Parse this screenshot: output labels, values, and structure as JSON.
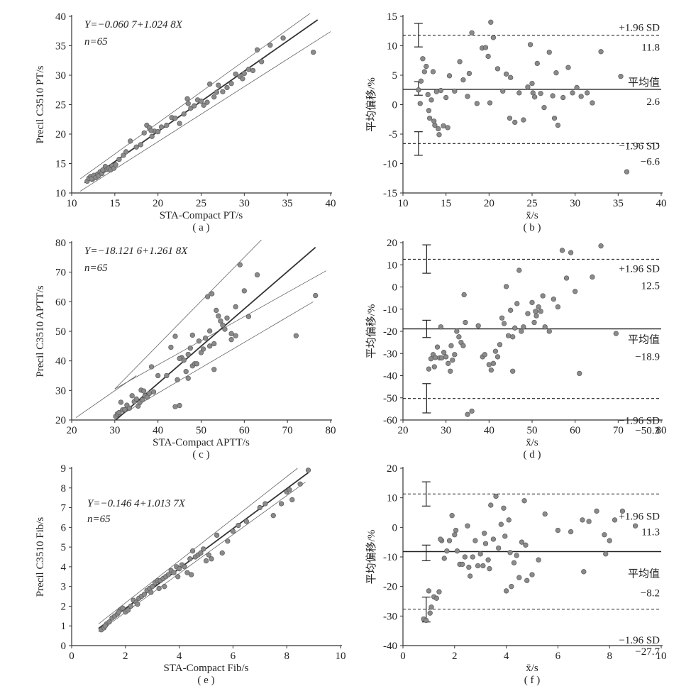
{
  "chart_data": [
    {
      "type": "scatter",
      "panel_label": "( a )",
      "xlabel": "STA-Compact PT/s",
      "ylabel": "Precil C3510 PT/s",
      "xlim": [
        10,
        40
      ],
      "ylim": [
        10,
        40
      ],
      "xticks": [
        10,
        15,
        20,
        25,
        30,
        35,
        40
      ],
      "yticks": [
        10,
        15,
        20,
        25,
        30,
        35,
        40
      ],
      "annotation_lines": [
        "Y=−0.060 7+1.024 8X",
        "n=65"
      ],
      "regression": {
        "intercept": -0.0607,
        "slope": 1.0248,
        "x_range": [
          11.5,
          38.5
        ]
      },
      "bounds": [
        {
          "points": [
            [
              11,
              12.4
            ],
            [
              40,
              43
            ]
          ]
        },
        {
          "points": [
            [
              11,
              10.3
            ],
            [
              40,
              37.4
            ]
          ]
        }
      ],
      "x": [
        11.8,
        12.0,
        12.2,
        12.4,
        12.6,
        12.8,
        13.0,
        13.1,
        13.3,
        13.5,
        13.7,
        13.9,
        14.1,
        14.3,
        14.5,
        14.7,
        14.9,
        15.1,
        15.5,
        16.0,
        16.3,
        16.8,
        17.5,
        18.0,
        18.4,
        18.7,
        19.0,
        19.3,
        19.6,
        20.0,
        20.4,
        21.0,
        21.6,
        22.0,
        22.5,
        23.0,
        23.4,
        23.8,
        24.2,
        24.6,
        25.0,
        25.3,
        25.7,
        26.0,
        26.5,
        27.0,
        27.5,
        28.0,
        28.5,
        29.0,
        29.5,
        30.0,
        30.5,
        31.0,
        31.5,
        32.0,
        33.0,
        34.5,
        38.0,
        19.2,
        23.5,
        12.3,
        13.6,
        26.8,
        29.8
      ],
      "y": [
        12.0,
        12.5,
        12.8,
        12.3,
        13.0,
        12.6,
        13.2,
        12.9,
        13.6,
        13.3,
        13.8,
        14.5,
        14.0,
        14.2,
        13.9,
        14.6,
        14.2,
        14.8,
        15.7,
        16.4,
        17.0,
        18.8,
        17.8,
        18.2,
        20.2,
        21.5,
        21.1,
        19.6,
        20.5,
        20.4,
        21.2,
        21.5,
        22.8,
        22.7,
        21.8,
        23.4,
        26.0,
        24.4,
        24.8,
        25.8,
        25.6,
        24.9,
        25.4,
        28.5,
        26.3,
        28.3,
        27.2,
        27.9,
        28.6,
        30.2,
        29.8,
        30.3,
        31.0,
        30.8,
        34.3,
        32.3,
        35.1,
        36.3,
        33.9,
        20.6,
        25.2,
        12.4,
        13.9,
        27.1,
        29.4
      ]
    },
    {
      "type": "scatter",
      "panel_label": "( b )",
      "xlabel": "x̄/s",
      "ylabel": "平均偏移/%",
      "xlim": [
        10,
        40
      ],
      "ylim": [
        -15,
        15
      ],
      "xticks": [
        10,
        15,
        20,
        25,
        30,
        35,
        40
      ],
      "yticks": [
        -15,
        -10,
        -5,
        0,
        5,
        10,
        15
      ],
      "reference_lines": [
        {
          "y": 11.8,
          "style": "dashed",
          "name": "+1.96 SD",
          "value_label": "11.8"
        },
        {
          "y": 2.6,
          "style": "solid",
          "name": "平均值",
          "value_label": "2.6"
        },
        {
          "y": -6.6,
          "style": "dashed",
          "name": "−1.96 SD",
          "value_label": "−6.6"
        }
      ],
      "ci_bars": [
        {
          "x": 11.8,
          "low": 9.8,
          "high": 13.8
        },
        {
          "x": 11.8,
          "low": 1.6,
          "high": 3.9
        },
        {
          "x": 11.8,
          "low": -8.6,
          "high": -4.6
        }
      ],
      "x": [
        11.8,
        12.1,
        12.3,
        12.5,
        12.7,
        12.9,
        13.1,
        13.3,
        13.5,
        13.7,
        13.9,
        14.1,
        14.4,
        14.7,
        15.0,
        15.4,
        16.0,
        16.6,
        17.0,
        17.5,
        18.0,
        18.6,
        19.2,
        19.6,
        19.9,
        20.2,
        20.5,
        21.0,
        21.6,
        22.0,
        22.5,
        23.0,
        23.5,
        24.0,
        24.5,
        24.8,
        25.0,
        25.3,
        25.6,
        26.0,
        26.4,
        27.0,
        27.4,
        27.6,
        28.0,
        28.6,
        29.2,
        29.7,
        30.2,
        30.7,
        31.4,
        32.0,
        33.0,
        35.3,
        36.0,
        12.0,
        13.0,
        13.6,
        14.2,
        15.2,
        17.7,
        20.1,
        22.4,
        25.1,
        27.8
      ],
      "y": [
        2.5,
        4.0,
        7.8,
        5.6,
        6.5,
        1.7,
        -2.3,
        0.8,
        5.6,
        -3.5,
        2.2,
        -4.1,
        2.4,
        -3.6,
        1.2,
        4.9,
        2.3,
        7.3,
        4.2,
        1.4,
        12.2,
        0.2,
        9.6,
        9.7,
        8.2,
        14.0,
        11.4,
        6.1,
        2.3,
        5.2,
        4.6,
        -3.0,
        2.0,
        -2.6,
        3.0,
        10.2,
        3.6,
        1.3,
        7.0,
        1.9,
        -0.5,
        8.9,
        1.5,
        -2.3,
        -3.5,
        1.2,
        6.3,
        2.0,
        2.9,
        1.4,
        2.0,
        0.3,
        9.0,
        4.8,
        -11.4,
        0.2,
        -1.0,
        -2.8,
        -5.1,
        -3.9,
        5.3,
        0.3,
        -2.3,
        2.0,
        5.4
      ]
    },
    {
      "type": "scatter",
      "panel_label": "( c )",
      "xlabel": "STA-Compact APTT/s",
      "ylabel": "Precil C3510 APTT/s",
      "xlim": [
        20,
        80
      ],
      "ylim": [
        20,
        80
      ],
      "xticks": [
        20,
        30,
        40,
        50,
        60,
        70,
        80
      ],
      "yticks": [
        20,
        30,
        40,
        50,
        60,
        70,
        80
      ],
      "annotation_lines": [
        "Y=−18.121 6+1.261 8X",
        "n=65"
      ],
      "regression": {
        "intercept": -18.1216,
        "slope": 1.2618,
        "x_range": [
          30.2,
          76.5
        ]
      },
      "bounds": [
        {
          "points": [
            [
              30,
              30.5
            ],
            [
              79,
              70.5
            ]
          ]
        },
        {
          "points": [
            [
              30,
              20.5
            ],
            [
              76,
              60
            ]
          ]
        },
        {
          "points": [
            [
              30,
              30.5
            ],
            [
              64,
              81
            ]
          ]
        },
        {
          "points": [
            [
              21,
              20.8
            ],
            [
              35,
              35
            ]
          ]
        }
      ],
      "x": [
        30.2,
        30.6,
        31.0,
        31.4,
        31.8,
        32.3,
        32.8,
        33.4,
        34.0,
        34.5,
        35.0,
        35.4,
        35.8,
        36.1,
        36.4,
        36.7,
        37.0,
        37.5,
        38.0,
        38.5,
        39.0,
        40.0,
        42.0,
        43.0,
        44.0,
        44.5,
        45.0,
        45.5,
        46.0,
        46.5,
        47.0,
        47.5,
        48.0,
        48.5,
        49.0,
        49.5,
        50.0,
        50.5,
        51.0,
        51.5,
        52.0,
        52.5,
        53.0,
        53.5,
        54.0,
        54.5,
        55.0,
        55.5,
        56.0,
        57.0,
        58.0,
        59.0,
        60.0,
        61.0,
        63.0,
        72.0,
        76.5,
        44.0,
        45.0,
        47.0,
        48.0,
        53.0,
        57.0,
        58.0,
        52.0
      ],
      "y": [
        21.2,
        22.1,
        22.5,
        26.0,
        23.4,
        23.5,
        25.0,
        24.0,
        28.2,
        26.2,
        27.1,
        24.7,
        25.9,
        30.1,
        26.8,
        29.8,
        28.2,
        27.7,
        29.0,
        38.0,
        29.5,
        35.0,
        35.0,
        44.6,
        48.3,
        33.6,
        24.9,
        41.1,
        40.2,
        36.4,
        34.1,
        44.3,
        38.3,
        39.0,
        39.0,
        46.7,
        42.8,
        44.0,
        47.7,
        61.7,
        50.1,
        62.7,
        37.1,
        57.1,
        55.2,
        53.5,
        52.1,
        50.7,
        54.5,
        49.2,
        58.3,
        72.5,
        63.7,
        55.0,
        69.1,
        48.5,
        62.1,
        24.5,
        40.8,
        42.2,
        48.7,
        45.8,
        47.2,
        48.5,
        45.0
      ]
    },
    {
      "type": "scatter",
      "panel_label": "( d )",
      "xlabel": "x̄/s",
      "ylabel": "平均偏移/%",
      "xlim": [
        20,
        80
      ],
      "ylim": [
        -60,
        20
      ],
      "xticks": [
        20,
        30,
        40,
        50,
        60,
        70,
        80
      ],
      "yticks": [
        -60,
        -50,
        -40,
        -30,
        -20,
        -10,
        0,
        10,
        20
      ],
      "reference_lines": [
        {
          "y": 12.5,
          "style": "dashed",
          "name": "+1.96 SD",
          "value_label": "12.5"
        },
        {
          "y": -18.9,
          "style": "solid",
          "name": "平均值",
          "value_label": "−18.9"
        },
        {
          "y": -50.3,
          "style": "dashed",
          "name": "−1.96 SD",
          "value_label": "−50.3"
        }
      ],
      "ci_bars": [
        {
          "x": 25.5,
          "low": 6.2,
          "high": 19.0
        },
        {
          "x": 25.5,
          "low": -22.8,
          "high": -15.0
        },
        {
          "x": 25.5,
          "low": -56.8,
          "high": -43.6
        }
      ],
      "x": [
        26.0,
        26.5,
        27.0,
        27.5,
        28.0,
        28.5,
        29.0,
        29.5,
        30.0,
        30.5,
        31.0,
        31.5,
        32.0,
        32.5,
        33.0,
        33.5,
        34.0,
        34.5,
        35.0,
        36.0,
        37.5,
        38.5,
        39.0,
        40.0,
        41.0,
        41.5,
        42.0,
        42.5,
        43.0,
        43.5,
        44.0,
        44.5,
        45.0,
        45.5,
        46.0,
        46.5,
        47.0,
        47.5,
        48.0,
        49.0,
        50.0,
        50.5,
        51.0,
        51.5,
        52.0,
        52.5,
        53.0,
        54.0,
        55.0,
        56.0,
        57.0,
        58.0,
        59.0,
        60.0,
        61.0,
        64.0,
        66.0,
        69.5,
        27.3,
        28.8,
        31.2,
        34.2,
        40.5,
        45.5,
        50.8
      ],
      "y": [
        -37.0,
        -32.4,
        -30.5,
        -31.8,
        -27.1,
        -32.0,
        -32.0,
        -29.5,
        -31.5,
        -34.5,
        -38.0,
        -33.0,
        -30.5,
        -20.0,
        -22.5,
        -25.0,
        -26.5,
        -16.0,
        -57.5,
        -56.0,
        -17.5,
        -31.5,
        -30.5,
        -35.0,
        -34.5,
        -29.0,
        -31.5,
        -26.0,
        -14.0,
        -16.5,
        0.2,
        -22.0,
        -10.5,
        -38.0,
        -18.5,
        -7.5,
        7.5,
        -20.0,
        -18.0,
        -12.0,
        -7.0,
        -16.0,
        -13.0,
        -9.0,
        -11.0,
        -4.0,
        -18.0,
        -20.0,
        -5.5,
        -9.0,
        16.5,
        4.0,
        15.5,
        -2.0,
        -39.0,
        4.5,
        18.5,
        -21.0,
        -36.0,
        -18.0,
        -26.5,
        -3.5,
        -37.5,
        -22.5,
        -11.0
      ]
    },
    {
      "type": "scatter",
      "panel_label": "( e )",
      "xlabel": "STA-Compact Fib/s",
      "ylabel": "Precil C3510 Fib/s",
      "xlim": [
        0,
        10
      ],
      "ylim": [
        0,
        9
      ],
      "xticks": [
        0,
        2,
        4,
        6,
        8,
        10
      ],
      "yticks": [
        0,
        1,
        2,
        3,
        4,
        5,
        6,
        7,
        8,
        9
      ],
      "annotation_lines": [
        "Y=−0.146 4+1.013 7X",
        "n=65"
      ],
      "regression": {
        "intercept": -0.1464,
        "slope": 1.0137,
        "x_range": [
          1.0,
          8.8
        ]
      },
      "bounds": [
        {
          "points": [
            [
              1.0,
              1.1
            ],
            [
              8.4,
              9.0
            ]
          ]
        },
        {
          "points": [
            [
              1.0,
              0.7
            ],
            [
              8.7,
              8.3
            ]
          ]
        }
      ],
      "x": [
        1.1,
        1.2,
        1.3,
        1.4,
        1.5,
        1.6,
        1.7,
        1.8,
        1.9,
        2.0,
        2.1,
        2.2,
        2.3,
        2.4,
        2.5,
        2.6,
        2.7,
        2.8,
        2.9,
        3.0,
        3.1,
        3.2,
        3.3,
        3.4,
        3.5,
        3.6,
        3.7,
        3.8,
        3.9,
        4.0,
        4.1,
        4.2,
        4.3,
        4.4,
        4.5,
        4.6,
        4.7,
        4.8,
        4.9,
        5.0,
        5.2,
        5.4,
        5.6,
        5.8,
        6.0,
        6.2,
        6.5,
        7.0,
        7.2,
        7.5,
        7.8,
        8.0,
        8.1,
        8.2,
        8.5,
        8.8,
        1.25,
        1.75,
        2.45,
        2.95,
        3.45,
        3.95,
        4.45,
        5.1,
        3.25
      ],
      "y": [
        0.8,
        0.9,
        1.1,
        1.2,
        1.4,
        1.5,
        1.6,
        1.8,
        1.9,
        1.7,
        1.8,
        2.0,
        2.3,
        2.2,
        2.4,
        2.5,
        2.6,
        2.8,
        2.9,
        3.0,
        3.2,
        3.3,
        3.3,
        3.4,
        3.5,
        3.6,
        3.8,
        3.7,
        4.0,
        3.9,
        4.1,
        4.0,
        3.7,
        4.4,
        4.8,
        4.5,
        4.6,
        4.7,
        4.9,
        4.3,
        4.4,
        5.6,
        4.7,
        5.3,
        5.8,
        6.1,
        6.3,
        7.0,
        7.2,
        6.6,
        7.2,
        7.8,
        7.9,
        7.4,
        8.2,
        8.9,
        1.0,
        1.7,
        2.1,
        2.7,
        3.0,
        3.5,
        3.6,
        4.6,
        2.9
      ]
    },
    {
      "type": "scatter",
      "panel_label": "( f )",
      "xlabel": "x̄/s",
      "ylabel": "平均偏移/%",
      "xlim": [
        0,
        10
      ],
      "ylim": [
        -40,
        20
      ],
      "xticks": [
        0,
        2,
        4,
        6,
        8,
        10
      ],
      "yticks": [
        -40,
        -30,
        -20,
        -10,
        0,
        10,
        20
      ],
      "reference_lines": [
        {
          "y": 11.3,
          "style": "dashed",
          "name": "+1.96 SD",
          "value_label": "11.3"
        },
        {
          "y": -8.2,
          "style": "solid",
          "name": "平均值",
          "value_label": "−8.2"
        },
        {
          "y": -27.7,
          "style": "dashed",
          "name": "−1.96 SD",
          "value_label": "−27.7"
        }
      ],
      "ci_bars": [
        {
          "x": 0.9,
          "low": 7.2,
          "high": 15.4
        },
        {
          "x": 0.9,
          "low": -11.3,
          "high": -6.0
        },
        {
          "x": 0.9,
          "low": -32.0,
          "high": -23.6
        }
      ],
      "x": [
        0.8,
        0.9,
        1.0,
        1.1,
        1.2,
        1.3,
        1.4,
        1.5,
        1.6,
        1.7,
        1.8,
        1.9,
        2.0,
        2.1,
        2.2,
        2.3,
        2.4,
        2.5,
        2.6,
        2.7,
        2.8,
        2.9,
        3.0,
        3.1,
        3.2,
        3.3,
        3.4,
        3.5,
        3.6,
        3.7,
        3.8,
        3.9,
        4.0,
        4.1,
        4.2,
        4.3,
        4.4,
        4.5,
        4.6,
        4.7,
        4.8,
        5.0,
        5.5,
        6.0,
        6.5,
        7.0,
        7.2,
        7.5,
        7.8,
        8.0,
        8.2,
        8.5,
        9.0,
        1.05,
        1.45,
        2.05,
        3.15,
        3.95,
        4.75,
        6.95,
        7.85,
        2.55,
        3.35,
        4.15,
        5.25
      ],
      "y": [
        -31.0,
        -31.5,
        -21.5,
        -27.0,
        -23.5,
        -24.0,
        -21.8,
        -4.5,
        -10.5,
        -8.0,
        -4.5,
        4.0,
        -2.5,
        -8.0,
        -12.5,
        -12.5,
        -10.0,
        0.5,
        -16.5,
        -10.0,
        -4.5,
        -13.0,
        -9.0,
        -13.0,
        -5.5,
        -11.0,
        7.5,
        -4.0,
        10.5,
        -7.0,
        1.0,
        6.5,
        -21.5,
        2.5,
        -20.0,
        -12.0,
        -9.5,
        -17.0,
        -5.0,
        9.0,
        -18.0,
        -16.0,
        4.5,
        -1.0,
        -1.5,
        -15.0,
        2.0,
        5.5,
        -2.5,
        -4.5,
        2.5,
        5.5,
        0.5,
        -29.0,
        -4.0,
        -1.0,
        -2.0,
        -3.0,
        -6.0,
        2.5,
        -9.0,
        -13.5,
        -14.0,
        -8.5,
        -11.0
      ]
    }
  ]
}
